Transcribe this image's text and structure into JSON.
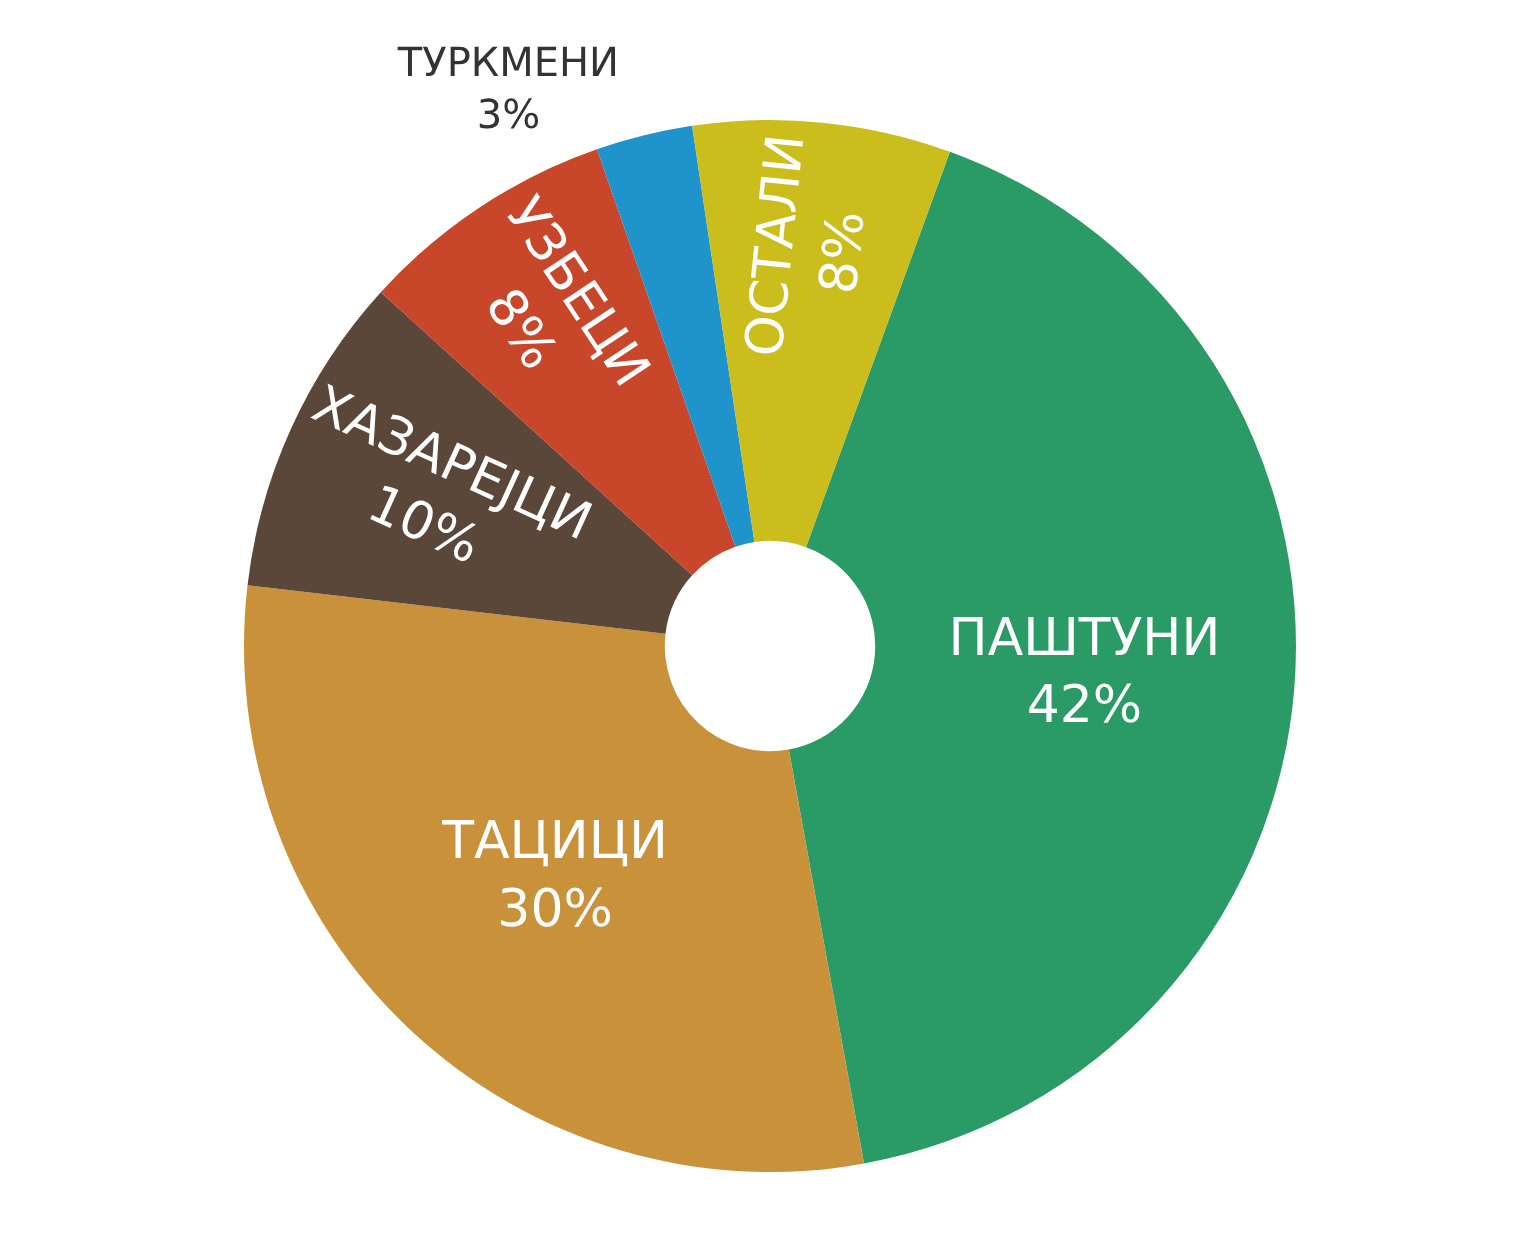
{
  "chart_data": {
    "type": "donut",
    "categories": [
      "ПАШТУНИ",
      "ТАЦИЦИ",
      "ХАЗАРЕЈЦИ",
      "УЗБЕЦИ",
      "ТУРКМЕНИ",
      "ОСТАЛИ"
    ],
    "values": [
      42,
      30,
      10,
      8,
      3,
      8
    ],
    "value_labels": [
      "42%",
      "30%",
      "10%",
      "8%",
      "3%",
      "8%"
    ],
    "colors": [
      "#2a9a66",
      "#c8913a",
      "#5b463a",
      "#c8462a",
      "#1f93cc",
      "#cbbd1c"
    ],
    "legend": false
  }
}
